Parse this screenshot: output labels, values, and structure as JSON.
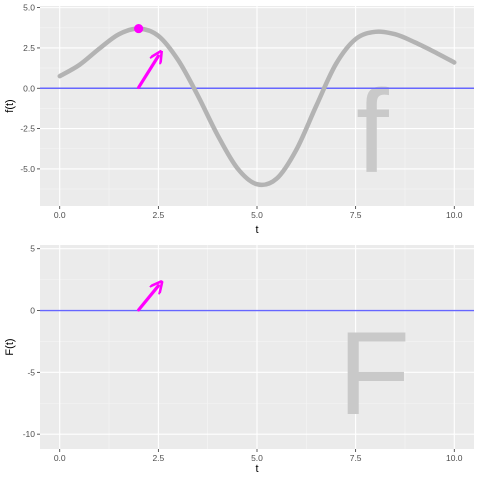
{
  "chart_data": [
    {
      "type": "line",
      "title": "",
      "xlabel": "t",
      "ylabel": "f(t)",
      "xlim": [
        -0.5,
        10.5
      ],
      "ylim": [
        -7.3,
        5.1
      ],
      "x_ticks": [
        0,
        2.5,
        5,
        7.5,
        10
      ],
      "x_tick_labels": [
        "0.0",
        "2.5",
        "5.0",
        "7.5",
        "10.0"
      ],
      "y_ticks": [
        5,
        2.5,
        0,
        -2.5,
        -5
      ],
      "y_tick_labels": [
        "5.0",
        "2.5",
        "0.0",
        "-2.5",
        "-5.0"
      ],
      "grid": true,
      "reference_line": {
        "y": 0,
        "color": "#6666ff"
      },
      "series": [
        {
          "color": "#b3b3b3",
          "x": [
            0,
            0.5,
            1,
            1.5,
            2,
            2.5,
            3,
            3.5,
            4,
            4.5,
            5,
            5.5,
            6,
            6.5,
            7,
            7.5,
            8,
            8.5,
            9,
            9.5,
            10
          ],
          "y": [
            0.75,
            1.45,
            2.45,
            3.35,
            3.7,
            3.25,
            1.75,
            -0.45,
            -2.9,
            -4.95,
            -5.95,
            -5.6,
            -3.8,
            -1.1,
            1.5,
            3.05,
            3.5,
            3.35,
            2.85,
            2.25,
            1.6
          ]
        }
      ],
      "highlight_point": {
        "x": 2,
        "y": 3.7,
        "color": "#ff00ff"
      },
      "arrow": {
        "from": [
          2,
          0.05
        ],
        "to": [
          2.5,
          2.0
        ],
        "color": "#ff00ff"
      },
      "watermark_letter": "f"
    },
    {
      "type": "line",
      "title": "",
      "xlabel": "t",
      "ylabel": "F(t)",
      "xlim": [
        -0.5,
        10.5
      ],
      "ylim": [
        -11.2,
        5.3
      ],
      "x_ticks": [
        0,
        2.5,
        5,
        7.5,
        10
      ],
      "x_tick_labels": [
        "0.0",
        "2.5",
        "5.0",
        "7.5",
        "10.0"
      ],
      "y_ticks": [
        5,
        0,
        -5,
        -10
      ],
      "y_tick_labels": [
        "5",
        "0",
        "-5",
        "-10"
      ],
      "grid": true,
      "reference_line": {
        "y": 0,
        "color": "#6666ff"
      },
      "series": [],
      "arrow": {
        "from": [
          2,
          0.05
        ],
        "to": [
          2.5,
          2.0
        ],
        "color": "#ff00ff"
      },
      "watermark_letter": "F"
    }
  ]
}
